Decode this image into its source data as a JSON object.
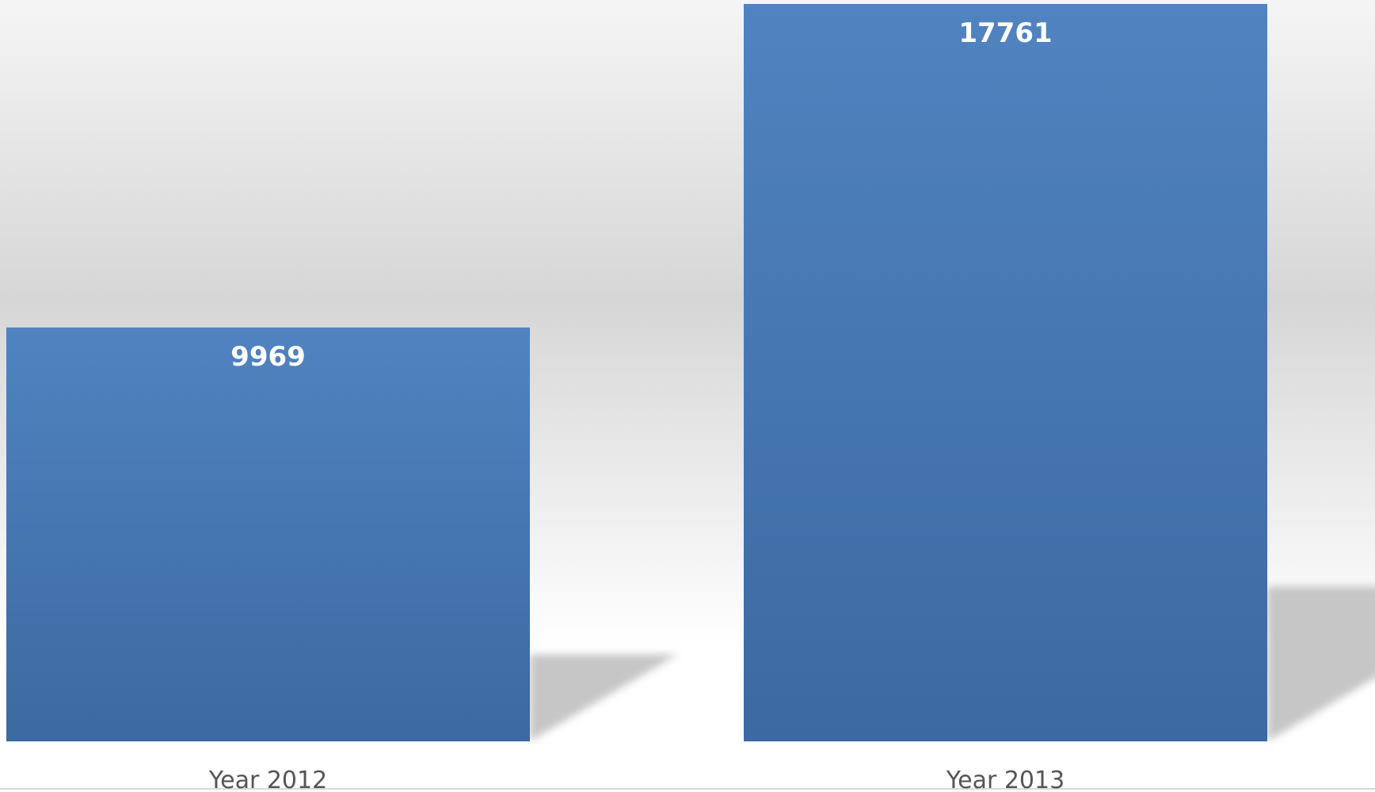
{
  "chart_data": {
    "type": "bar",
    "categories": [
      "Year 2012",
      "Year 2013"
    ],
    "values": [
      9969,
      17761
    ],
    "data_labels": [
      "9969",
      "17761"
    ],
    "title": "",
    "xlabel": "",
    "ylabel": "",
    "grid": false,
    "legend": "none"
  },
  "colors": {
    "bar_top": "#5083c0",
    "bar_bottom": "#3c69a1",
    "background_top": "#f5f5f5",
    "background_mid": "#d6d6d6",
    "background_bottom": "#ffffff",
    "shadow": "#c6c6c6",
    "value_label": "#ffffff",
    "category_label": "#555555"
  }
}
